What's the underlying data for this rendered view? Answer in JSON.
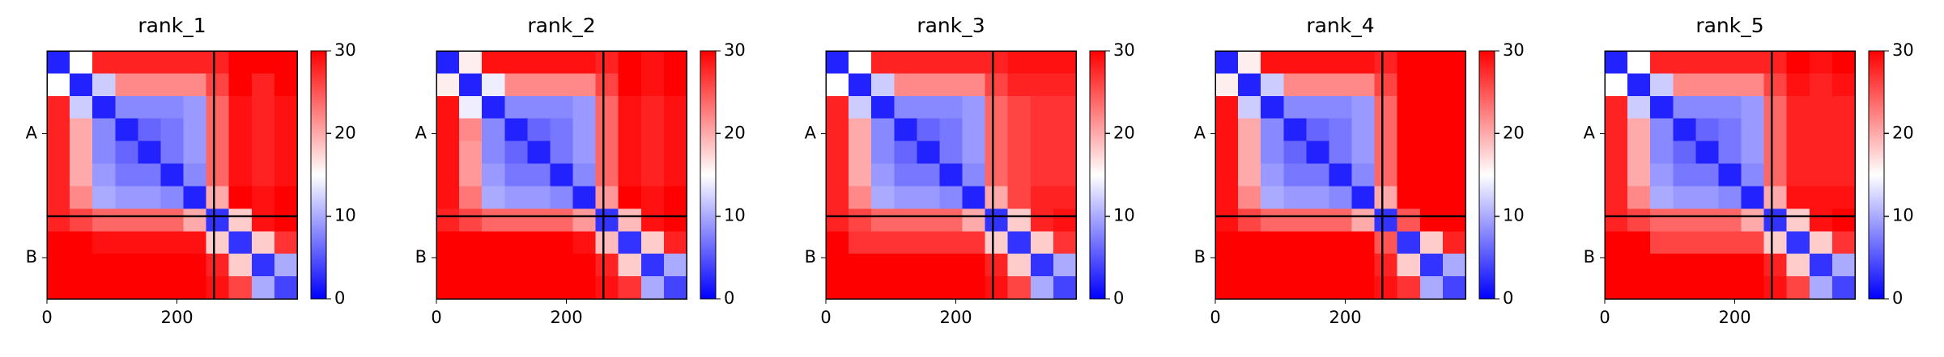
{
  "chart_data": [
    {
      "type": "heatmap",
      "title": "rank_1",
      "xlim": [
        0,
        385
      ],
      "ylim": [
        385,
        0
      ],
      "xticks": [
        0,
        200
      ],
      "yticks": [
        {
          "value": 128.5,
          "label": "A"
        },
        {
          "value": 321,
          "label": "B"
        }
      ],
      "chain_boundaries": [
        257
      ],
      "cmap": [
        "#0000ff",
        "#ffffff",
        "#ff0000"
      ],
      "clim": [
        0,
        30
      ],
      "cticks": [
        0,
        10,
        20,
        30
      ],
      "z": [
        [
          2,
          15,
          28,
          28,
          28,
          28,
          28,
          28,
          30,
          30,
          30
        ],
        [
          15,
          2,
          12,
          22,
          22,
          22,
          22,
          26,
          30,
          28,
          30
        ],
        [
          28,
          12,
          2,
          8,
          8,
          8,
          9,
          24,
          29,
          28,
          29
        ],
        [
          28,
          20,
          8,
          2,
          6,
          7,
          9,
          24,
          29,
          28,
          29
        ],
        [
          28,
          20,
          8,
          6,
          2,
          7,
          9,
          24,
          29,
          28,
          29
        ],
        [
          28,
          20,
          9,
          7,
          7,
          2,
          8,
          24,
          29,
          28,
          29
        ],
        [
          28,
          22,
          10,
          9,
          9,
          8,
          2,
          20,
          30,
          29,
          30
        ],
        [
          28,
          26,
          24,
          24,
          24,
          24,
          20,
          3,
          18,
          29,
          30
        ],
        [
          30,
          30,
          29,
          29,
          29,
          29,
          29,
          18,
          3,
          18,
          27
        ],
        [
          30,
          30,
          30,
          30,
          30,
          30,
          30,
          28,
          18,
          3,
          10
        ],
        [
          30,
          30,
          30,
          30,
          30,
          30,
          30,
          29,
          26,
          10,
          4
        ]
      ]
    },
    {
      "type": "heatmap",
      "title": "rank_2",
      "xlim": [
        0,
        385
      ],
      "ylim": [
        385,
        0
      ],
      "xticks": [
        0,
        200
      ],
      "yticks": [
        {
          "value": 128.5,
          "label": "A"
        },
        {
          "value": 321,
          "label": "B"
        }
      ],
      "chain_boundaries": [
        257
      ],
      "cmap": [
        "#0000ff",
        "#ffffff",
        "#ff0000"
      ],
      "clim": [
        0,
        30
      ],
      "cticks": [
        0,
        10,
        20,
        30
      ],
      "z": [
        [
          2,
          16,
          29,
          29,
          29,
          29,
          29,
          28,
          30,
          29,
          30
        ],
        [
          16,
          2,
          14,
          22,
          22,
          22,
          22,
          26,
          30,
          29,
          30
        ],
        [
          29,
          14,
          2,
          8,
          8,
          8,
          9,
          24,
          29,
          28,
          29
        ],
        [
          29,
          22,
          8,
          2,
          6,
          7,
          9,
          24,
          29,
          28,
          29
        ],
        [
          29,
          21,
          8,
          6,
          2,
          7,
          9,
          24,
          29,
          28,
          29
        ],
        [
          29,
          21,
          9,
          7,
          7,
          2,
          8,
          24,
          29,
          28,
          29
        ],
        [
          29,
          23,
          10,
          9,
          9,
          8,
          2,
          21,
          30,
          29,
          30
        ],
        [
          28,
          26,
          24,
          24,
          24,
          24,
          21,
          3,
          19,
          29,
          30
        ],
        [
          30,
          30,
          30,
          30,
          30,
          30,
          29,
          19,
          3,
          18,
          28
        ],
        [
          30,
          30,
          30,
          30,
          30,
          30,
          30,
          28,
          18,
          3,
          10
        ],
        [
          30,
          30,
          30,
          30,
          30,
          30,
          30,
          29,
          27,
          10,
          4
        ]
      ]
    },
    {
      "type": "heatmap",
      "title": "rank_3",
      "xlim": [
        0,
        385
      ],
      "ylim": [
        385,
        0
      ],
      "xticks": [
        0,
        200
      ],
      "yticks": [
        {
          "value": 128.5,
          "label": "A"
        },
        {
          "value": 321,
          "label": "B"
        }
      ],
      "chain_boundaries": [
        257
      ],
      "cmap": [
        "#0000ff",
        "#ffffff",
        "#ff0000"
      ],
      "clim": [
        0,
        30
      ],
      "cticks": [
        0,
        10,
        20,
        30
      ],
      "z": [
        [
          2,
          15,
          28,
          28,
          28,
          28,
          28,
          28,
          29,
          29,
          29
        ],
        [
          15,
          2,
          12,
          22,
          22,
          22,
          22,
          26,
          28,
          28,
          28
        ],
        [
          28,
          12,
          2,
          8,
          8,
          8,
          9,
          24,
          26,
          27,
          27
        ],
        [
          28,
          20,
          8,
          2,
          6,
          7,
          9,
          24,
          26,
          27,
          27
        ],
        [
          28,
          20,
          8,
          6,
          2,
          7,
          9,
          24,
          26,
          27,
          27
        ],
        [
          28,
          20,
          9,
          7,
          7,
          2,
          8,
          24,
          26,
          27,
          27
        ],
        [
          28,
          22,
          10,
          9,
          9,
          8,
          2,
          20,
          26,
          28,
          28
        ],
        [
          28,
          26,
          24,
          24,
          24,
          24,
          20,
          3,
          18,
          28,
          29
        ],
        [
          30,
          27,
          27,
          27,
          27,
          27,
          27,
          18,
          3,
          18,
          27
        ],
        [
          30,
          30,
          30,
          30,
          30,
          30,
          30,
          28,
          18,
          3,
          10
        ],
        [
          30,
          30,
          30,
          30,
          30,
          30,
          30,
          29,
          26,
          10,
          4
        ]
      ]
    },
    {
      "type": "heatmap",
      "title": "rank_4",
      "xlim": [
        0,
        385
      ],
      "ylim": [
        385,
        0
      ],
      "xticks": [
        0,
        200
      ],
      "yticks": [
        {
          "value": 128.5,
          "label": "A"
        },
        {
          "value": 321,
          "label": "B"
        }
      ],
      "chain_boundaries": [
        257
      ],
      "cmap": [
        "#0000ff",
        "#ffffff",
        "#ff0000"
      ],
      "clim": [
        0,
        30
      ],
      "cticks": [
        0,
        10,
        20,
        30
      ],
      "z": [
        [
          2,
          16,
          29,
          29,
          29,
          29,
          29,
          28,
          30,
          30,
          30
        ],
        [
          16,
          2,
          12,
          22,
          22,
          22,
          22,
          26,
          30,
          30,
          30
        ],
        [
          29,
          12,
          2,
          8,
          8,
          8,
          9,
          24,
          30,
          30,
          30
        ],
        [
          29,
          20,
          8,
          2,
          6,
          7,
          9,
          24,
          30,
          30,
          30
        ],
        [
          29,
          20,
          8,
          6,
          2,
          7,
          9,
          24,
          30,
          30,
          30
        ],
        [
          29,
          20,
          9,
          7,
          7,
          2,
          8,
          24,
          30,
          30,
          30
        ],
        [
          29,
          22,
          10,
          9,
          9,
          8,
          2,
          20,
          30,
          30,
          30
        ],
        [
          29,
          26,
          24,
          24,
          24,
          24,
          20,
          3,
          25,
          30,
          30
        ],
        [
          30,
          30,
          30,
          30,
          30,
          30,
          30,
          25,
          3,
          18,
          28
        ],
        [
          30,
          30,
          30,
          30,
          30,
          30,
          30,
          28,
          18,
          3,
          10
        ],
        [
          30,
          30,
          30,
          30,
          30,
          30,
          30,
          29,
          27,
          10,
          4
        ]
      ]
    },
    {
      "type": "heatmap",
      "title": "rank_5",
      "xlim": [
        0,
        385
      ],
      "ylim": [
        385,
        0
      ],
      "xticks": [
        0,
        200
      ],
      "yticks": [
        {
          "value": 128.5,
          "label": "A"
        },
        {
          "value": 321,
          "label": "B"
        }
      ],
      "chain_boundaries": [
        257
      ],
      "cmap": [
        "#0000ff",
        "#ffffff",
        "#ff0000"
      ],
      "clim": [
        0,
        30
      ],
      "cticks": [
        0,
        10,
        20,
        30
      ],
      "z": [
        [
          2,
          15,
          28,
          28,
          28,
          28,
          28,
          28,
          30,
          29,
          30
        ],
        [
          15,
          2,
          12,
          22,
          22,
          22,
          22,
          26,
          29,
          28,
          29
        ],
        [
          28,
          12,
          2,
          8,
          8,
          8,
          9,
          24,
          28,
          28,
          28
        ],
        [
          28,
          20,
          8,
          2,
          6,
          7,
          9,
          24,
          28,
          28,
          28
        ],
        [
          28,
          20,
          8,
          6,
          2,
          7,
          9,
          24,
          28,
          28,
          28
        ],
        [
          28,
          20,
          9,
          7,
          7,
          2,
          8,
          24,
          28,
          28,
          28
        ],
        [
          28,
          22,
          10,
          9,
          9,
          8,
          2,
          20,
          29,
          29,
          29
        ],
        [
          28,
          26,
          24,
          24,
          24,
          24,
          20,
          3,
          18,
          29,
          30
        ],
        [
          30,
          30,
          26,
          26,
          26,
          26,
          26,
          18,
          3,
          18,
          27
        ],
        [
          30,
          30,
          30,
          30,
          30,
          30,
          30,
          28,
          18,
          3,
          10
        ],
        [
          30,
          30,
          30,
          30,
          30,
          30,
          30,
          29,
          26,
          10,
          4
        ]
      ]
    }
  ]
}
